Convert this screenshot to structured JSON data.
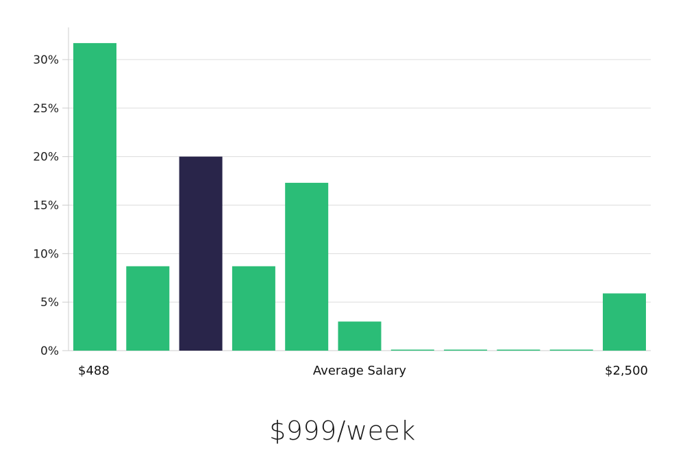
{
  "colors": {
    "bar": "#2bbd77",
    "bar_highlight": "#29254a",
    "grid": "#dcdcdc",
    "axis": "#cccccc"
  },
  "chart_data": {
    "type": "bar",
    "title": "$999/week",
    "xlabel": "Average Salary",
    "ylabel": "",
    "x_min_label": "$488",
    "x_max_label": "$2,500",
    "categories": [
      "bin1",
      "bin2",
      "bin3",
      "bin4",
      "bin5",
      "bin6",
      "bin7",
      "bin8",
      "bin9",
      "bin10",
      "bin11"
    ],
    "values": [
      31.7,
      8.7,
      20.0,
      8.7,
      17.3,
      3.0,
      0.1,
      0.1,
      0.1,
      0.1,
      5.9
    ],
    "highlight_index": 2,
    "yticks": [
      0,
      5,
      10,
      15,
      20,
      25,
      30
    ],
    "ytick_labels": [
      "0%",
      "5%",
      "10%",
      "15%",
      "20%",
      "25%",
      "30%"
    ],
    "ylim": [
      0,
      33.5
    ],
    "grid": true,
    "legend": null
  }
}
